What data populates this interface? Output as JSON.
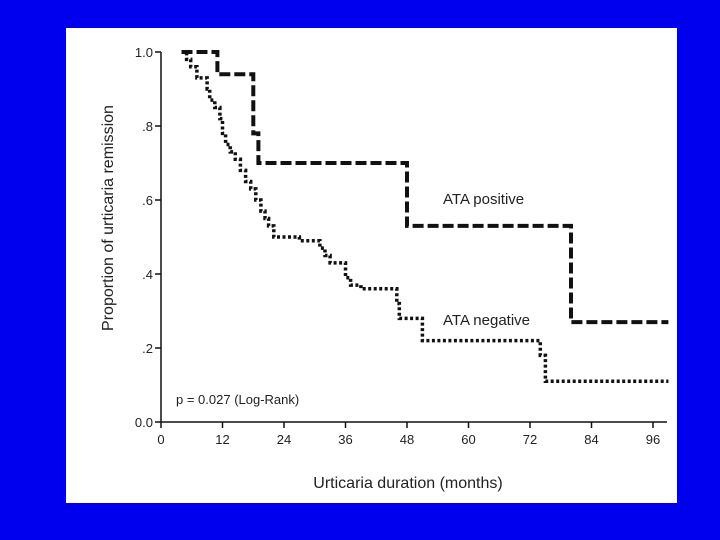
{
  "colors": {
    "background": "#0000ee",
    "panel": "#ffffff",
    "ink": "#111111"
  },
  "chart_data": {
    "type": "line",
    "subtype": "kaplan-meier step curves",
    "xlabel": "Urticaria duration (months)",
    "ylabel": "Proportion of urticaria remission",
    "xlim": [
      0,
      96
    ],
    "ylim": [
      0,
      1
    ],
    "x_ticks": [
      0,
      12,
      24,
      36,
      48,
      60,
      72,
      84,
      96
    ],
    "x_tick_labels": [
      "0",
      "12",
      "24",
      "36",
      "48",
      "60",
      "72",
      "84",
      "96"
    ],
    "y_ticks": [
      0,
      0.2,
      0.4,
      0.6,
      0.8,
      1.0
    ],
    "y_tick_labels": [
      "0.0",
      ".2",
      ".4",
      ".6",
      ".8",
      "1.0"
    ],
    "annotation": "p = 0.027 (Log-Rank)",
    "series": [
      {
        "name": "ATA positive",
        "style": "dashed",
        "steps": [
          [
            4,
            1.0
          ],
          [
            11,
            0.94
          ],
          [
            18,
            0.78
          ],
          [
            19,
            0.7
          ],
          [
            48,
            0.53
          ],
          [
            80,
            0.27
          ],
          [
            99,
            0.27
          ]
        ]
      },
      {
        "name": "ATA negative",
        "style": "dotted",
        "steps": [
          [
            4,
            1.0
          ],
          [
            5,
            0.98
          ],
          [
            5.8,
            0.96
          ],
          [
            7,
            0.93
          ],
          [
            9,
            0.9
          ],
          [
            9.5,
            0.87
          ],
          [
            10.5,
            0.85
          ],
          [
            11.5,
            0.82
          ],
          [
            12,
            0.78
          ],
          [
            12.6,
            0.75
          ],
          [
            13.5,
            0.73
          ],
          [
            14.5,
            0.71
          ],
          [
            15.5,
            0.68
          ],
          [
            16.5,
            0.65
          ],
          [
            17.5,
            0.63
          ],
          [
            18.5,
            0.6
          ],
          [
            19.5,
            0.57
          ],
          [
            20.3,
            0.55
          ],
          [
            21,
            0.53
          ],
          [
            22,
            0.5
          ],
          [
            27,
            0.49
          ],
          [
            31,
            0.47
          ],
          [
            32,
            0.45
          ],
          [
            33,
            0.43
          ],
          [
            36,
            0.39
          ],
          [
            37,
            0.37
          ],
          [
            39,
            0.36
          ],
          [
            46,
            0.32
          ],
          [
            46.5,
            0.28
          ],
          [
            51,
            0.22
          ],
          [
            74,
            0.18
          ],
          [
            75,
            0.11
          ],
          [
            99,
            0.11
          ]
        ]
      }
    ]
  }
}
